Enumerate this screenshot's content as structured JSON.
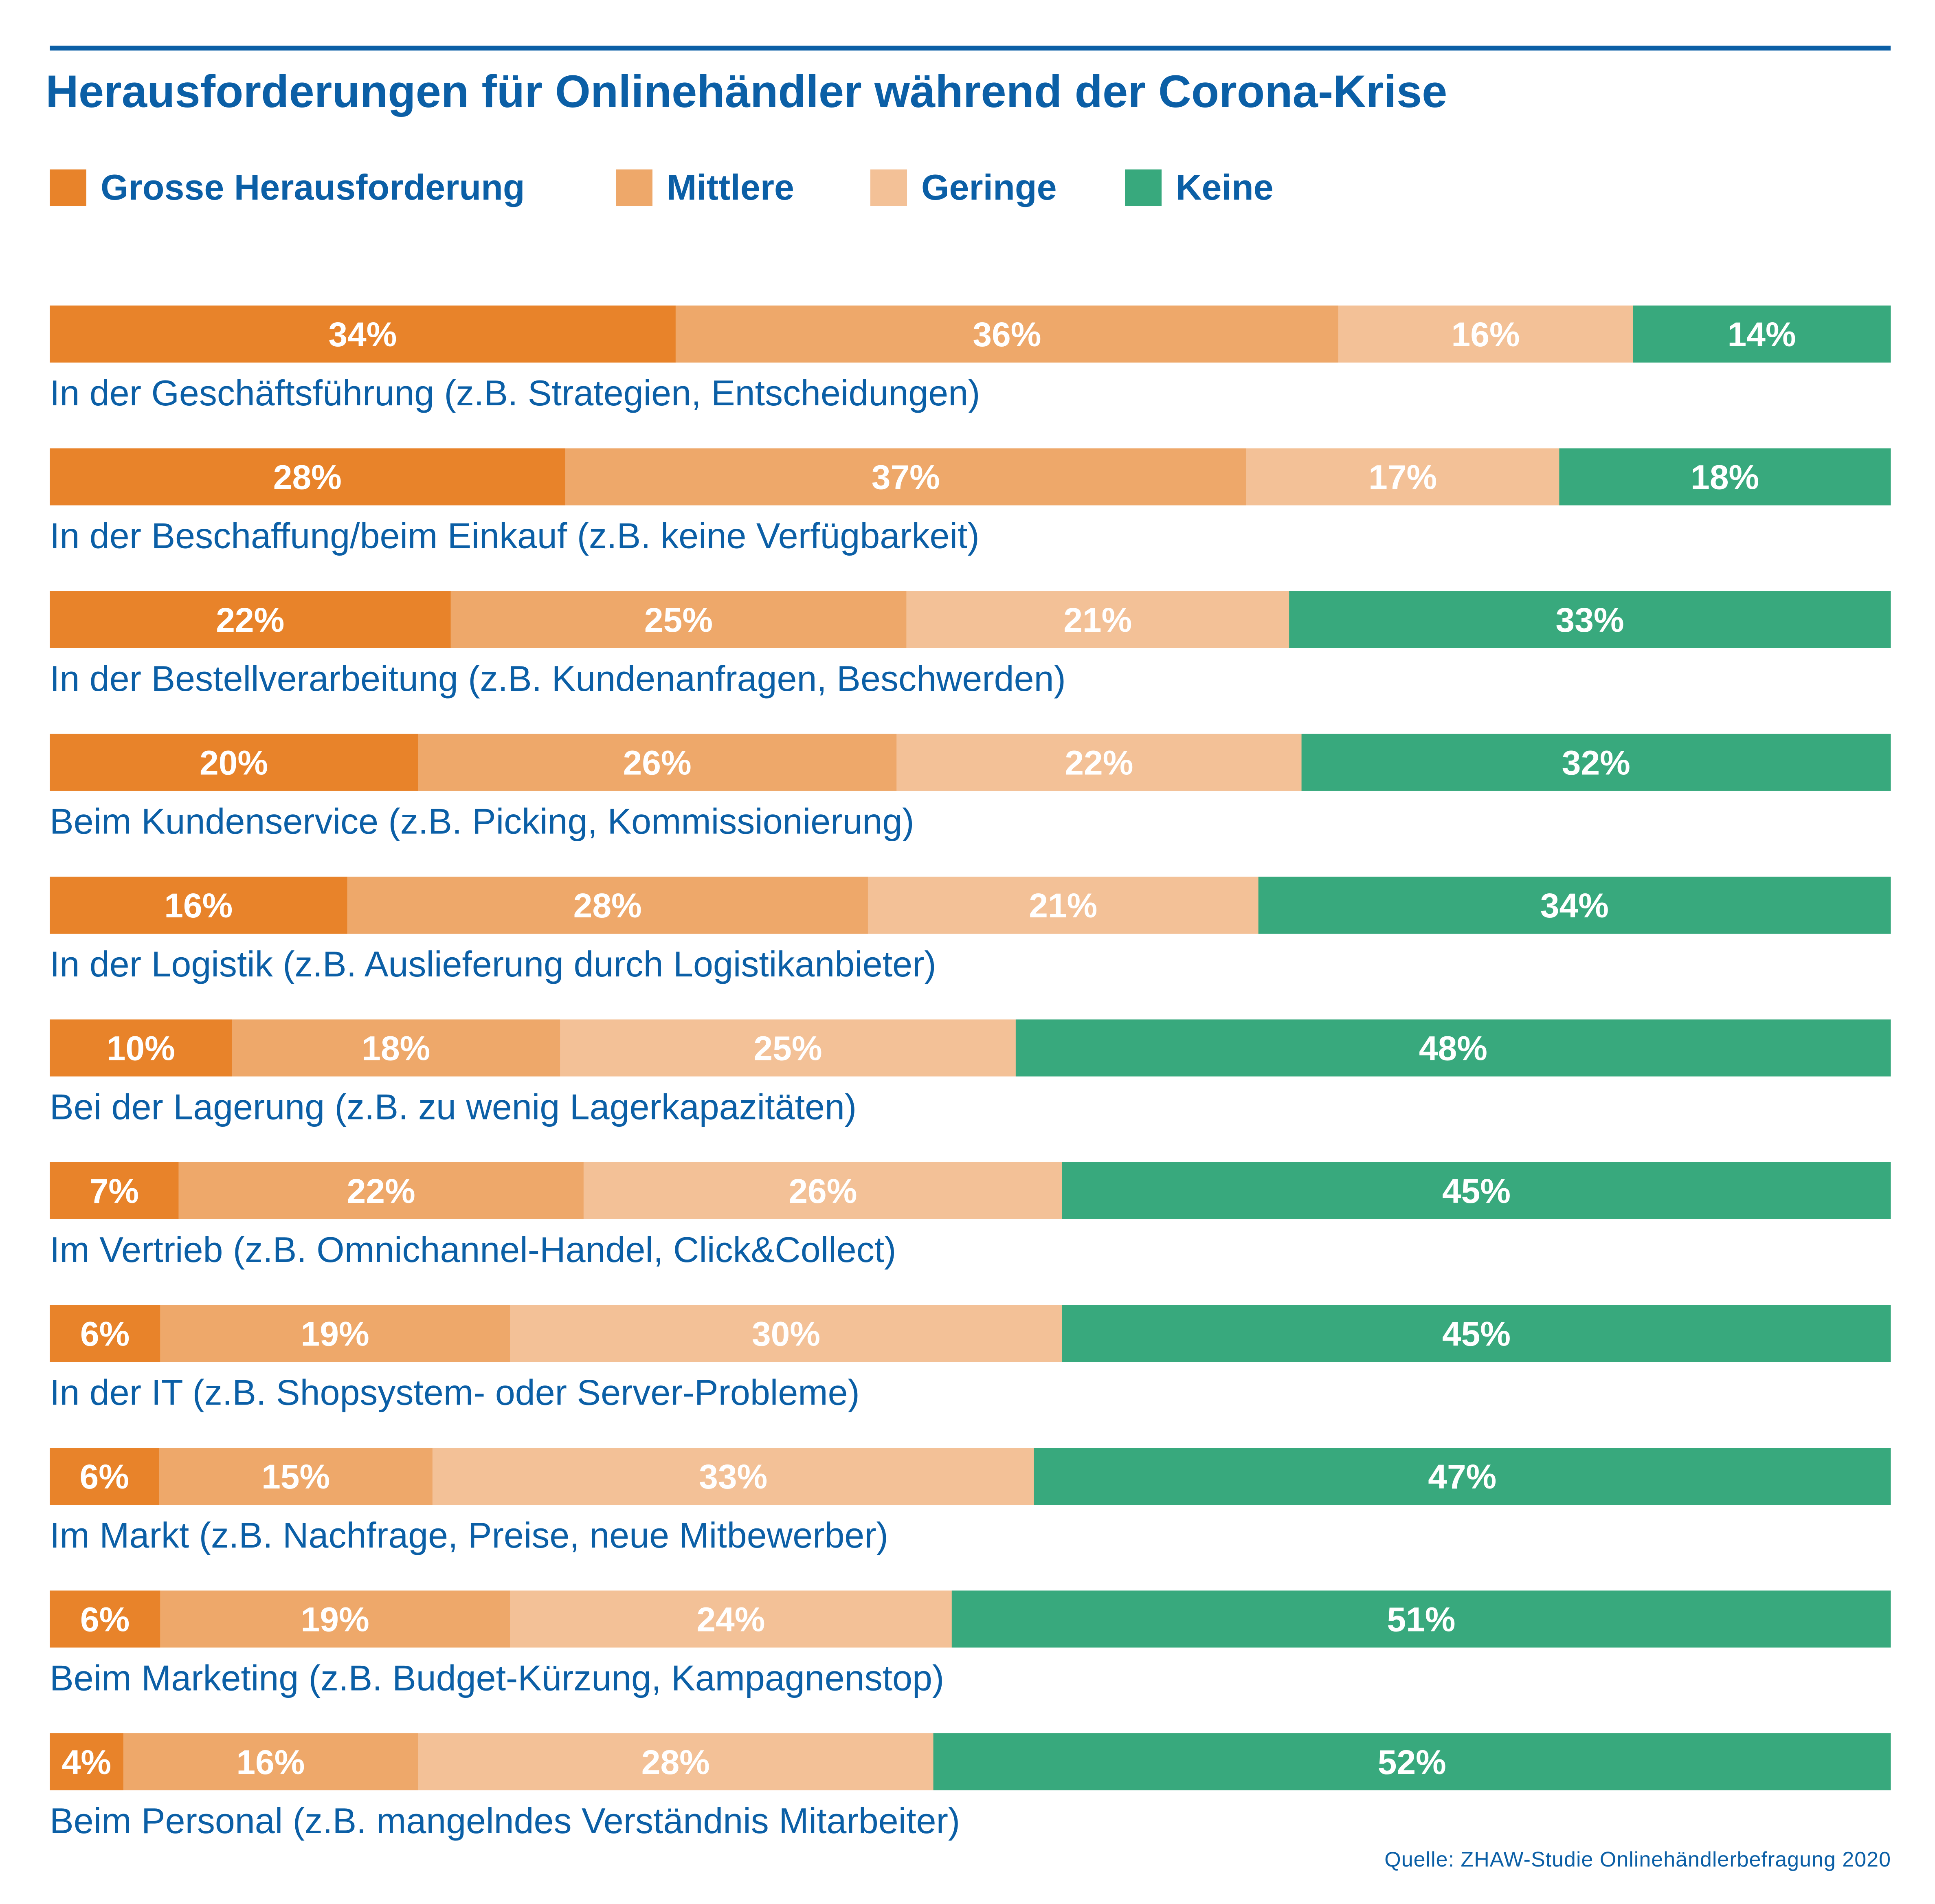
{
  "title": "Herausforderungen für Onlinehändler während der Corona-Krise",
  "source": "Quelle: ZHAW-Studie Onlinehändlerbefragung 2020",
  "colors": {
    "brand_blue": "#0b5fa6",
    "grosse": "#e8832a",
    "mittlere": "#eea86a",
    "geringe": "#f3c197",
    "keine": "#38a97d",
    "segment_text": "#ffffff"
  },
  "legend": [
    {
      "label": "Grosse Herausforderung",
      "color": "#e8832a"
    },
    {
      "label": "Mittlere",
      "color": "#eea86a"
    },
    {
      "label": "Geringe",
      "color": "#f3c197"
    },
    {
      "label": "Keine",
      "color": "#38a97d"
    }
  ],
  "chart_data": {
    "type": "bar",
    "orientation": "horizontal",
    "stacked": true,
    "title": "Herausforderungen für Onlinehändler während der Corona-Krise",
    "value_unit": "%",
    "legend_position": "top",
    "grid": false,
    "categories": [
      "In der Geschäftsführung (z.B. Strategien, Entscheidungen)",
      "In der Beschaffung/beim Einkauf (z.B. keine Verfügbarkeit)",
      "In der Bestellverarbeitung (z.B. Kundenanfragen, Beschwerden)",
      "Beim Kundenservice (z.B. Picking, Kommissionierung)",
      "In der Logistik (z.B. Auslieferung durch Logistikanbieter)",
      "Bei der Lagerung (z.B. zu wenig Lagerkapazitäten)",
      "Im Vertrieb (z.B. Omnichannel-Handel, Click&Collect)",
      "In der IT (z.B. Shopsystem- oder Server-Probleme)",
      "Im Markt (z.B. Nachfrage, Preise, neue Mitbewerber)",
      "Beim Marketing (z.B. Budget-Kürzung, Kampagnenstop)",
      "Beim Personal (z.B. mangelndes Verständnis Mitarbeiter)"
    ],
    "series": [
      {
        "name": "Grosse Herausforderung",
        "color": "#e8832a",
        "values": [
          34,
          28,
          22,
          20,
          16,
          10,
          7,
          6,
          6,
          6,
          4
        ]
      },
      {
        "name": "Mittlere",
        "color": "#eea86a",
        "values": [
          36,
          37,
          25,
          26,
          28,
          18,
          22,
          19,
          15,
          19,
          16
        ]
      },
      {
        "name": "Geringe",
        "color": "#f3c197",
        "values": [
          16,
          17,
          21,
          22,
          21,
          25,
          26,
          30,
          33,
          24,
          28
        ]
      },
      {
        "name": "Keine",
        "color": "#38a97d",
        "values": [
          14,
          18,
          33,
          32,
          34,
          48,
          45,
          45,
          47,
          51,
          52
        ]
      }
    ]
  }
}
